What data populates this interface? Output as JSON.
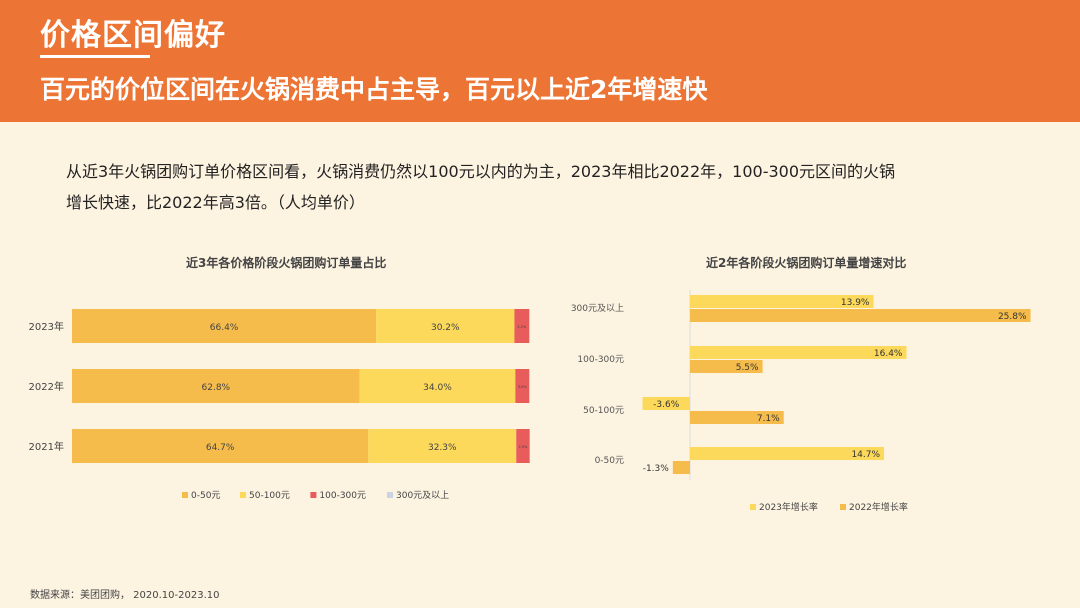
{
  "header": {
    "title": "价格区间偏好",
    "subtitle": "百元的价位区间在火锅消费中占主导，百元以上近2年增速快"
  },
  "description": {
    "line1": "从近3年火锅团购订单价格区间看，火锅消费仍然以100元以内的为主，2023年相比2022年，100-300元区间的火锅",
    "line2": "增长快速，比2022年高3倍。（人均单价）"
  },
  "colors": {
    "header_bg": "#ec7535",
    "c0_50": "#f5bc4c",
    "c50_100": "#fcd95a",
    "c100_300": "#e85c5c",
    "c300": "#c9d3e2",
    "growth2023": "#fcd95a",
    "growth2022": "#f5bc4c"
  },
  "chart_data": [
    {
      "type": "bar",
      "orientation": "horizontal",
      "stacked": true,
      "title": "近3年各价格阶段火锅团购订单量占比",
      "categories": [
        "2023年",
        "2022年",
        "2021年"
      ],
      "series": [
        {
          "name": "0-50元",
          "values": [
            66.4,
            62.8,
            64.7
          ],
          "labels": [
            "66.4%",
            "62.8%",
            "64.7%"
          ]
        },
        {
          "name": "50-100元",
          "values": [
            30.2,
            34.0,
            32.3
          ],
          "labels": [
            "30.2%",
            "34.0%",
            "32.3%"
          ]
        },
        {
          "name": "100-300元",
          "values": [
            3.2,
            3.0,
            2.9
          ],
          "labels": [
            "3.2%",
            "3.0%",
            "2.9%"
          ]
        },
        {
          "name": "300元及以上",
          "values": [
            0.2,
            0.2,
            0.1
          ],
          "labels": [
            "",
            "",
            ""
          ]
        }
      ],
      "legend": "bottom"
    },
    {
      "type": "bar",
      "orientation": "horizontal",
      "title": "近2年各阶段火锅团购订单量增速对比",
      "categories": [
        "300元及以上",
        "100-300元",
        "50-100元",
        "0-50元"
      ],
      "series": [
        {
          "name": "2023年增长率",
          "values": [
            13.9,
            16.4,
            -3.6,
            14.7
          ],
          "labels": [
            "13.9%",
            "16.4%",
            "-3.6%",
            "14.7%"
          ]
        },
        {
          "name": "2022年增长率",
          "values": [
            25.8,
            5.5,
            7.1,
            -1.3
          ],
          "labels": [
            "25.8%",
            "5.5%",
            "7.1%",
            "-1.3%"
          ]
        }
      ],
      "legend": "bottom"
    }
  ],
  "source": "数据来源：美团团购， 2020.10-2023.10"
}
